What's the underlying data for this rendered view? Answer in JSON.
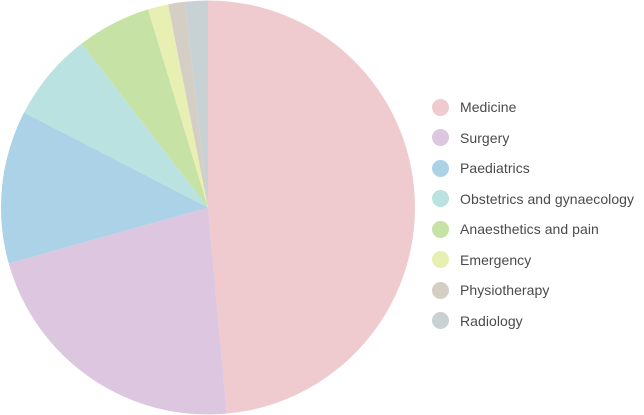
{
  "chart_data": {
    "type": "pie",
    "title": "",
    "legend_position": "right",
    "start_angle_deg": 0,
    "direction": "clockwise",
    "slices": [
      {
        "label": "Medicine",
        "value": 48.8,
        "color": "#efcbcf"
      },
      {
        "label": "Surgery",
        "value": 22.2,
        "color": "#dcc6e0"
      },
      {
        "label": "Paediatrics",
        "value": 12.0,
        "color": "#abd2e6"
      },
      {
        "label": "Obstetrics and gynaecology",
        "value": 7.0,
        "color": "#b9e2e0"
      },
      {
        "label": "Anaesthetics and pain",
        "value": 5.8,
        "color": "#c6e2a5"
      },
      {
        "label": "Emergency",
        "value": 1.6,
        "color": "#e8efb3"
      },
      {
        "label": "Physiotherapy",
        "value": 1.3,
        "color": "#d5cec4"
      },
      {
        "label": "Radiology",
        "value": 1.8,
        "color": "#c8d2d4"
      }
    ]
  }
}
